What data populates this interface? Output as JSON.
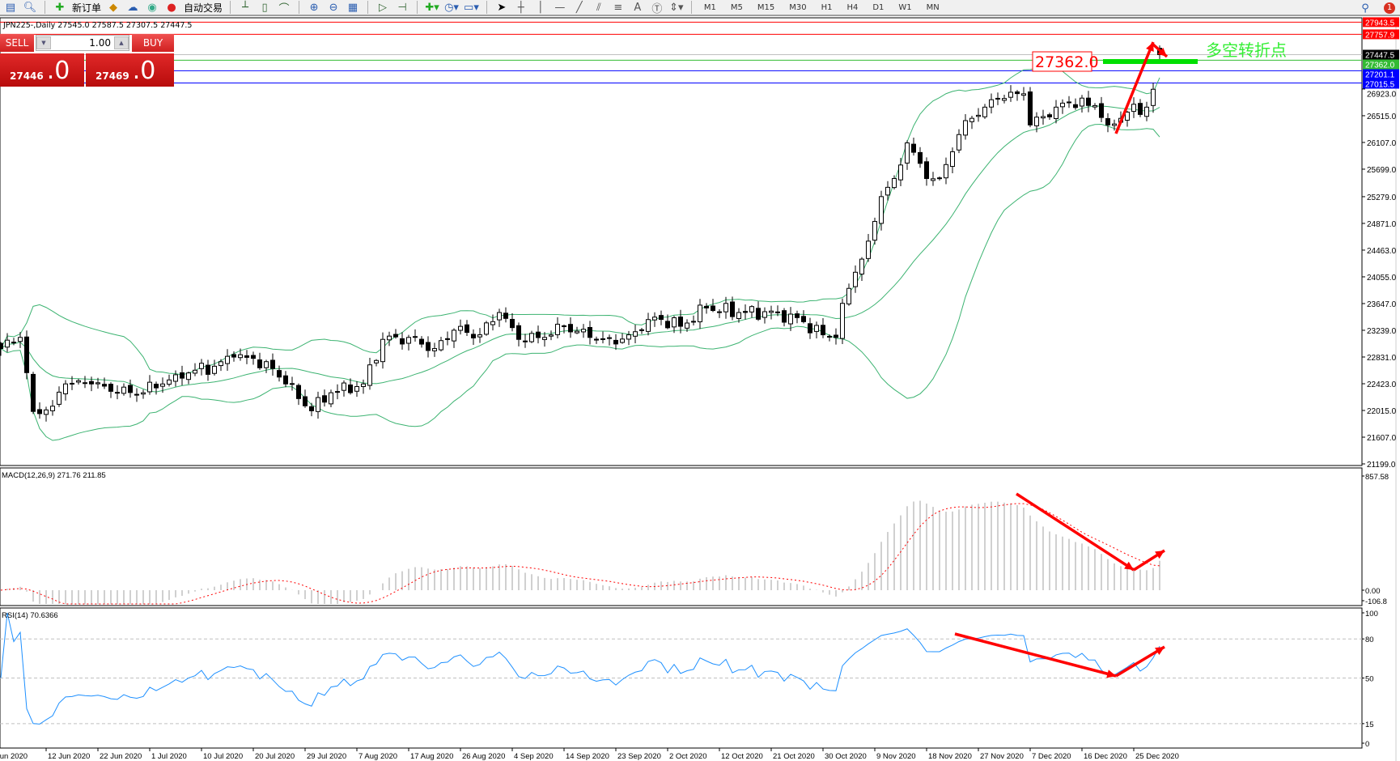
{
  "toolbar": {
    "new_order": "新订单",
    "auto_trading": "自动交易",
    "timeframes": [
      "M1",
      "M5",
      "M15",
      "M30",
      "H1",
      "H4",
      "D1",
      "W1",
      "MN"
    ],
    "notification_count": "1"
  },
  "symbol": {
    "title": "JPN225-,Daily  27545.0 27587.5 27307.5 27447.5"
  },
  "trade_panel": {
    "sell_label": "SELL",
    "buy_label": "BUY",
    "lot": "1.00",
    "sell_price_main": "27446",
    "sell_price_frac": ".0",
    "buy_price_main": "27469",
    "buy_price_frac": ".0"
  },
  "annotation": {
    "price_label": "27362.0",
    "text": "多空转折点"
  },
  "colors": {
    "bull": "#ffffff",
    "bear": "#000000",
    "bands": "#3cb371",
    "macd_hist": "#c0c0c0",
    "macd_signal": "#ff0000",
    "rsi": "#1e90ff",
    "annotation_arrow": "#ff0000",
    "annotation_bar": "#00e000"
  },
  "chart_data": [
    {
      "type": "candlestick",
      "symbol": "JPN225-",
      "timeframe": "Daily",
      "last_bar": {
        "open": 27545.0,
        "high": 27587.5,
        "low": 27307.5,
        "close": 27447.5
      },
      "bars": 180,
      "close_keypoints": {
        "bar": [
          0,
          3,
          5,
          8,
          10,
          14,
          18,
          22,
          27,
          33,
          36,
          41,
          44,
          48,
          51,
          56,
          59,
          63,
          67,
          70,
          74,
          77,
          80,
          84,
          87,
          91,
          95,
          99,
          101,
          105,
          109,
          114,
          120,
          124,
          127,
          129,
          130,
          132,
          134,
          136,
          138,
          140,
          143,
          145,
          147,
          149,
          152,
          154,
          158,
          159,
          163,
          165,
          169,
          171,
          174,
          177,
          178,
          179
        ],
        "close": [
          22960,
          23130,
          22000,
          22080,
          22420,
          22420,
          22285,
          22285,
          22560,
          22690,
          22830,
          22760,
          22420,
          22010,
          22285,
          22420,
          23100,
          23130,
          22960,
          23240,
          23170,
          23510,
          23100,
          23130,
          23300,
          23130,
          23030,
          23240,
          23440,
          23300,
          23580,
          23510,
          23510,
          23370,
          23170,
          23130,
          23650,
          24125,
          24600,
          25280,
          25556,
          26100,
          25556,
          25556,
          25965,
          26440,
          26646,
          26780,
          26850,
          26374,
          26646,
          26714,
          26670,
          26374,
          26570,
          26646,
          26919,
          27447.5
        ]
      },
      "indicator": "Bollinger Bands",
      "ylim": [
        21199.0,
        27943.5
      ],
      "y_ticks": [
        "26923.0",
        "26515.0",
        "26107.0",
        "25699.0",
        "25279.0",
        "24871.0",
        "24463.0",
        "24055.0",
        "23647.0",
        "23239.0",
        "22831.0",
        "22423.0",
        "22015.0",
        "21607.0",
        "21199.0"
      ],
      "levels": [
        {
          "label": "27943.5",
          "color": "#ff0000"
        },
        {
          "label": "27757.9",
          "color": "#ff0000"
        },
        {
          "label": "27447.5",
          "color": "#000000"
        },
        {
          "label": "27362.0",
          "color": "#33bb33"
        },
        {
          "label": "27201.1",
          "color": "#0000ff"
        },
        {
          "label": "27015.5",
          "color": "#0000ff"
        }
      ],
      "x_ticks": [
        "Jun 2020",
        "12 Jun 2020",
        "22 Jun 2020",
        "1 Jul 2020",
        "10 Jul 2020",
        "20 Jul 2020",
        "29 Jul 2020",
        "7 Aug 2020",
        "17 Aug 2020",
        "26 Aug 2020",
        "4 Sep 2020",
        "14 Sep 2020",
        "23 Sep 2020",
        "2 Oct 2020",
        "12 Oct 2020",
        "21 Oct 2020",
        "30 Oct 2020",
        "9 Nov 2020",
        "18 Nov 2020",
        "27 Nov 2020",
        "7 Dec 2020",
        "16 Dec 2020",
        "25 Dec 2020"
      ]
    },
    {
      "type": "bar",
      "title": "MACD(12,26,9) 271.76 211.85",
      "ylim": [
        -106.8,
        857.58
      ],
      "y_ticks": [
        "857.58",
        "0.00",
        "-106.8"
      ]
    },
    {
      "type": "line",
      "title": "RSI(14) 70.6366",
      "ylim": [
        0,
        100
      ],
      "y_ticks": [
        "100",
        "80",
        "50",
        "15",
        "0"
      ]
    }
  ]
}
